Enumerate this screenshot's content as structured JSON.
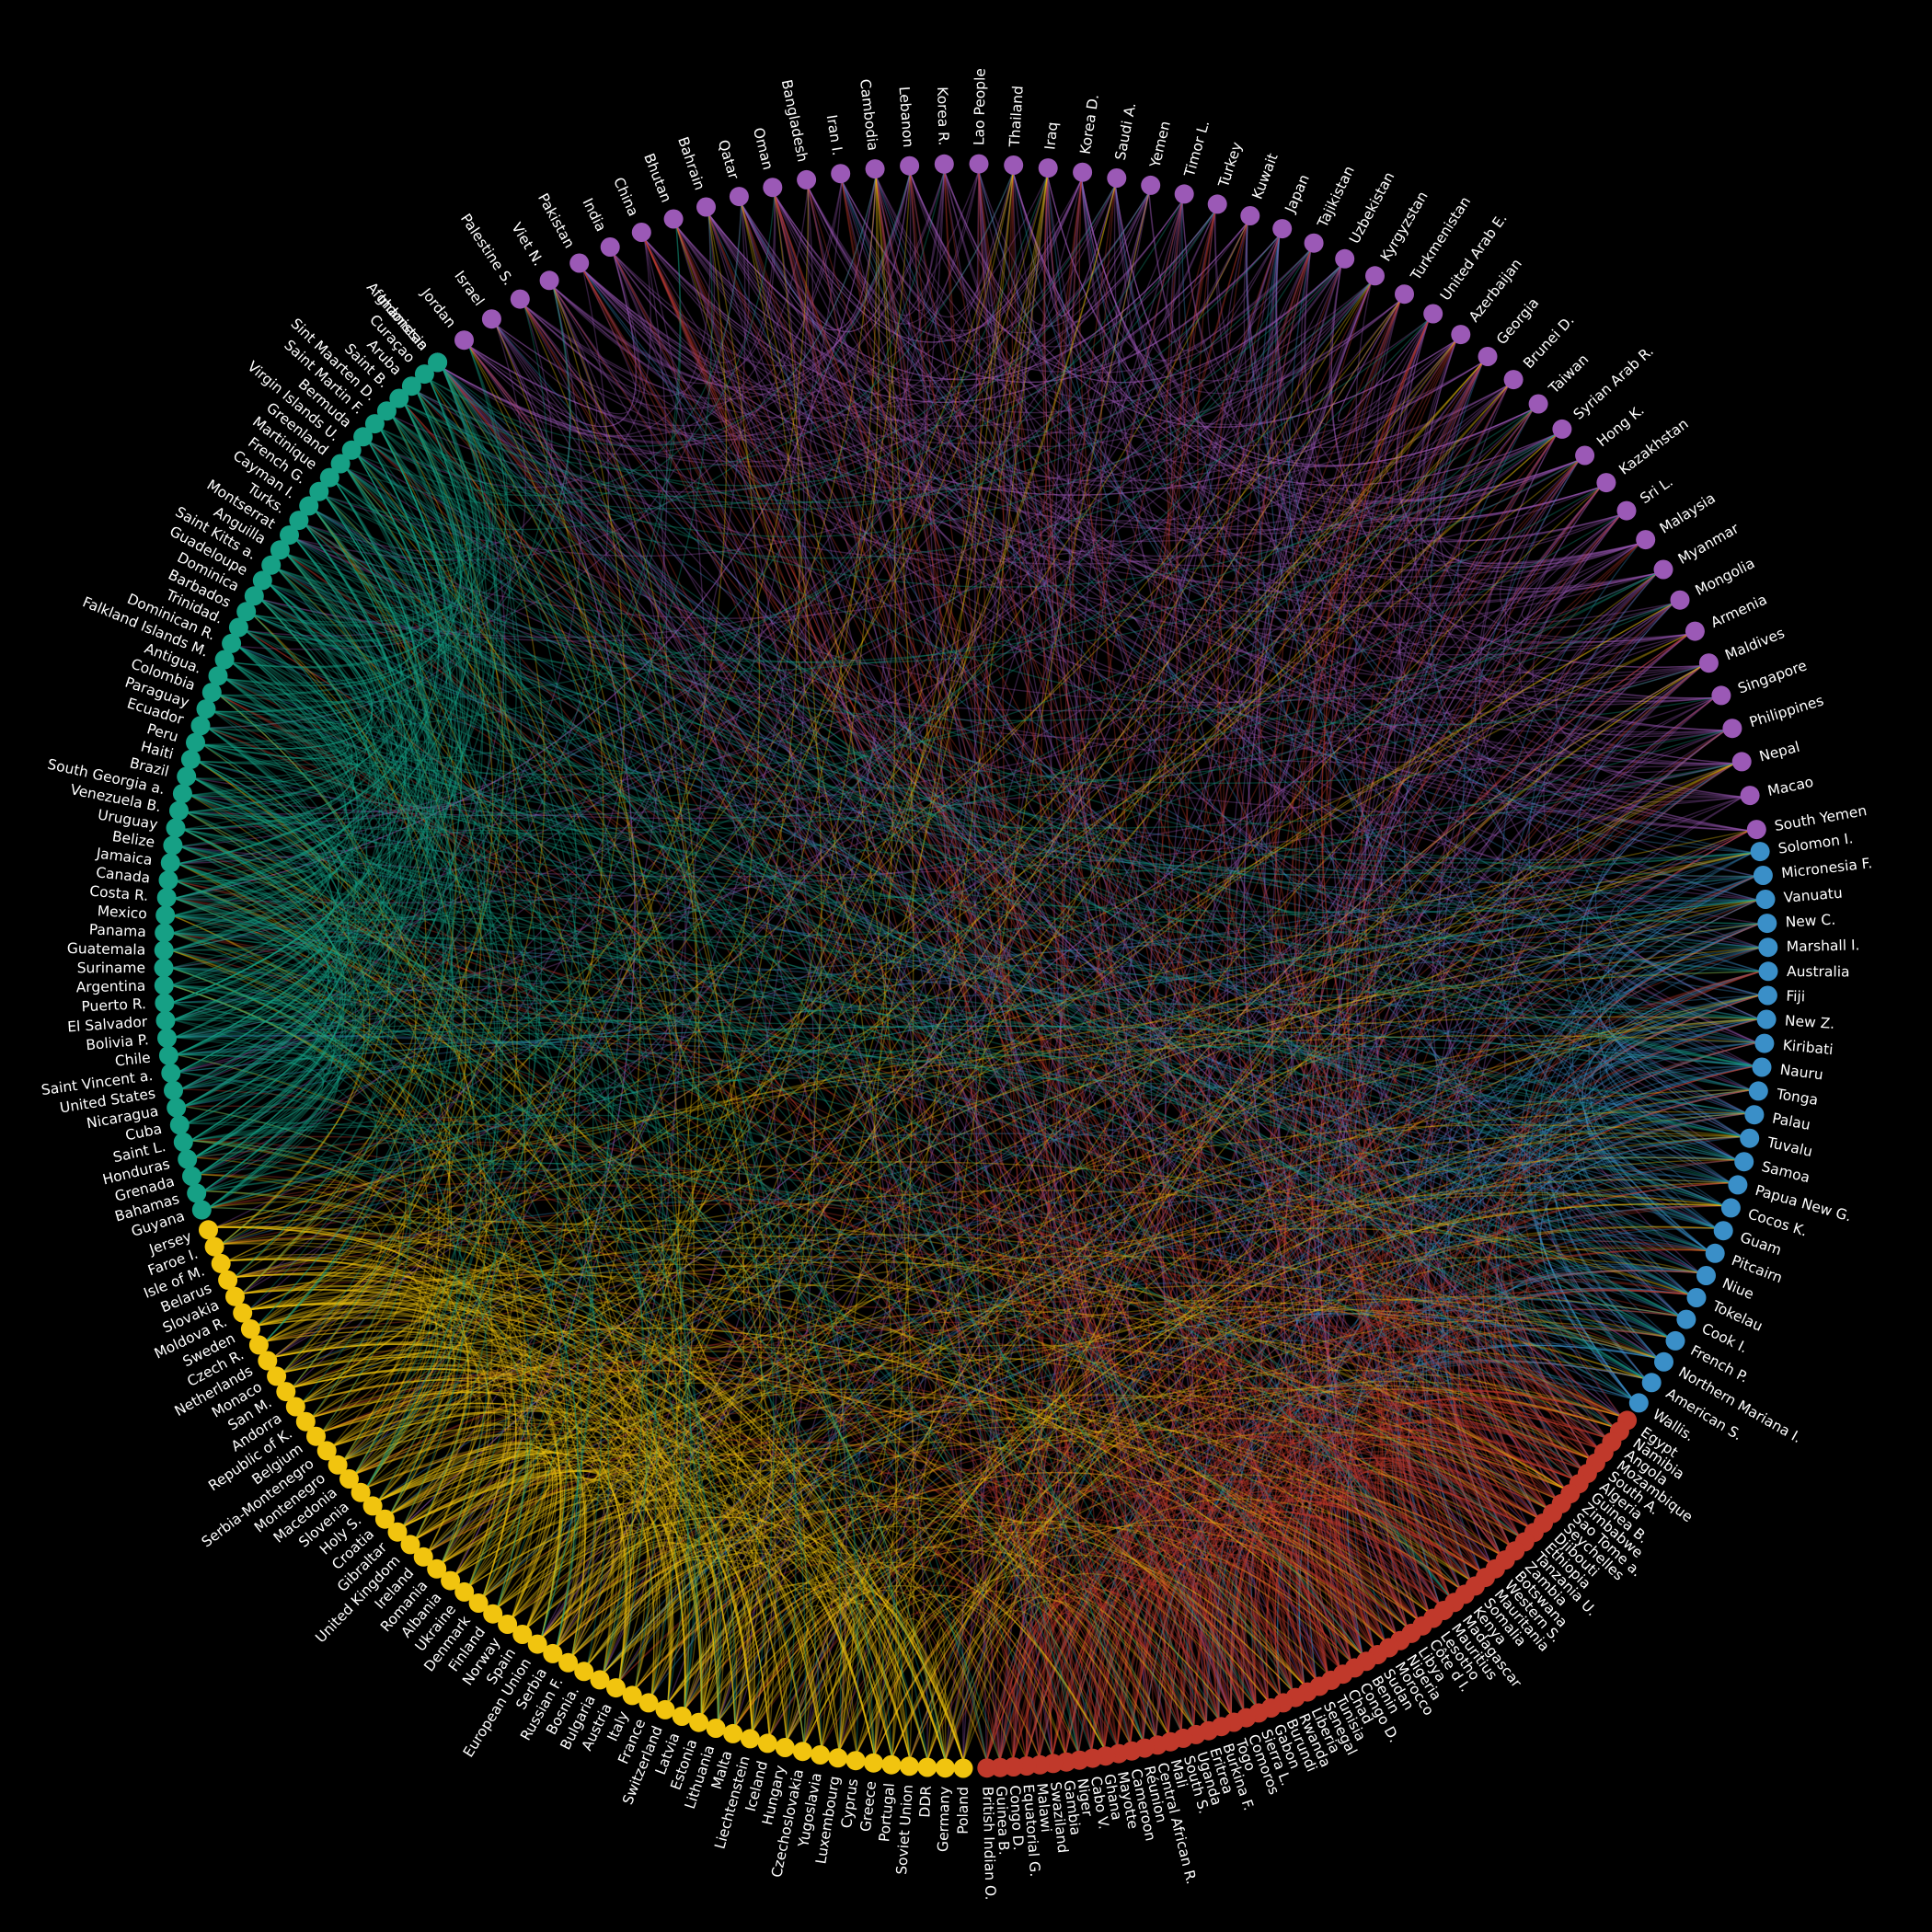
{
  "diagram": {
    "type": "chord",
    "background": "#000000",
    "groups": [
      {
        "name": "Asia",
        "color": "#9b59b6",
        "nodes": [
          "Indonesia",
          "Jordan",
          "Israel",
          "Palestine S.",
          "Viet N.",
          "Pakistan",
          "India",
          "China",
          "Bhutan",
          "Bahrain",
          "Qatar",
          "Oman",
          "Bangladesh",
          "Iran I.",
          "Cambodia",
          "Lebanon",
          "Korea R.",
          "Lao People",
          "Thailand",
          "Iraq",
          "Korea D.",
          "Saudi A.",
          "Yemen",
          "Timor L.",
          "Turkey",
          "Kuwait",
          "Japan",
          "Tajikistan",
          "Uzbekistan",
          "Kyrgyzstan",
          "Turkmenistan",
          "United Arab E.",
          "Azerbaijan",
          "Georgia",
          "Brunei D.",
          "Taiwan",
          "Syrian Arab R.",
          "Hong K.",
          "Kazakhstan",
          "Sri L.",
          "Malaysia",
          "Myanmar",
          "Mongolia",
          "Armenia",
          "Maldives",
          "Singapore",
          "Philippines",
          "Nepal",
          "Macao",
          "South Yemen"
        ]
      },
      {
        "name": "Oceania",
        "color": "#3a8fc8",
        "nodes": [
          "Solomon I.",
          "Micronesia F.",
          "Vanuatu",
          "New C.",
          "Marshall I.",
          "Australia",
          "Fiji",
          "New Z.",
          "Kiribati",
          "Nauru",
          "Tonga",
          "Palau",
          "Tuvalu",
          "Samoa",
          "Papua New G.",
          "Cocos K.",
          "Guam",
          "Pitcairn",
          "Niue",
          "Tokelau",
          "Cook I.",
          "French P.",
          "Northern Mariana I.",
          "American S.",
          "Wallis."
        ]
      },
      {
        "name": "Africa",
        "color": "#c0392b",
        "nodes": [
          "Egypt",
          "Namibia",
          "Angola",
          "Mozambique",
          "South A.",
          "Algeria",
          "Guinea B.",
          "Zimbabwe",
          "Sao Tome a.",
          "Seychelles",
          "Djibouti",
          "Ethiopia",
          "Tanzania U.",
          "Zambia",
          "Botswana",
          "Western S.",
          "Mauritania",
          "Somalia",
          "Kenya",
          "Madagascar",
          "Mauritius",
          "Lesotho",
          "Côte d I.",
          "Libya",
          "Nigeria",
          "Morocco",
          "Sudan",
          "Benin",
          "Congo D.",
          "Chad",
          "Tunisia",
          "Senegal",
          "Liberia",
          "Rwanda",
          "Burundi",
          "Gabon",
          "Sierra L.",
          "Comoros",
          "Togo",
          "Burkina F.",
          "Eritrea",
          "Uganda",
          "South S.",
          "Mali",
          "Central African R.",
          "Réunion",
          "Cameroon",
          "Mayotte",
          "Ghana",
          "Cabo V.",
          "Niger",
          "Gambia",
          "Swaziland",
          "Malawi",
          "Equatorial G.",
          "Congo D.",
          "Guinea B.",
          "British Indian O."
        ]
      },
      {
        "name": "Europe",
        "color": "#f1c40f",
        "nodes": [
          "Poland",
          "Germany",
          "DDR",
          "Soviet Union",
          "Portugal",
          "Greece",
          "Cyprus",
          "Luxembourg",
          "Yugoslavia",
          "Czechoslovakia",
          "Hungary",
          "Iceland",
          "Liechtenstein",
          "Malta",
          "Lithuania",
          "Estonia",
          "Latvia",
          "Switzerland",
          "France",
          "Italy",
          "Austria",
          "Bulgaria",
          "Bosnia.",
          "Russian F.",
          "Serbia",
          "European Union",
          "Spain",
          "Norway",
          "Finland",
          "Denmark",
          "Ukraine",
          "Albania",
          "Romania",
          "Ireland",
          "United Kingdom",
          "Gibraltar",
          "Croatia",
          "Holy S.",
          "Slovenia",
          "Macedonia",
          "Montenegro",
          "Serbia-Montenegro",
          "Belgium",
          "Republic of K.",
          "Andorra",
          "San M.",
          "Monaco",
          "Netherlands",
          "Czech R.",
          "Sweden",
          "Moldova R.",
          "Slovakia",
          "Belarus",
          "Isle of M.",
          "Faroe I.",
          "Jersey"
        ]
      },
      {
        "name": "Americas",
        "color": "#16a085",
        "nodes": [
          "Guyana",
          "Bahamas",
          "Grenada",
          "Honduras",
          "Saint L.",
          "Cuba",
          "Nicaragua",
          "United States",
          "Saint Vincent a.",
          "Chile",
          "Bolivia P.",
          "El Salvador",
          "Puerto R.",
          "Argentina",
          "Suriname",
          "Guatemala",
          "Panama",
          "Mexico",
          "Costa R.",
          "Canada",
          "Jamaica",
          "Belize",
          "Uruguay",
          "Venezuela B.",
          "South Georgia a.",
          "Brazil",
          "Haiti",
          "Peru",
          "Ecuador",
          "Paraguay",
          "Colombia",
          "Antigua.",
          "Falkland Islands M.",
          "Dominican R.",
          "Trinidad.",
          "Barbados",
          "Dominica",
          "Guadeloupe",
          "Saint Kitts a.",
          "Anguilla",
          "Montserrat",
          "Turks.",
          "Cayman I.",
          "French G.",
          "Martinique",
          "Greenland",
          "Virgin Islands U.",
          "Bermuda",
          "Saint Martin F.",
          "Sint Maarten D.",
          "Saint B.",
          "Aruba",
          "Curaçao",
          "Afghanistan"
        ]
      }
    ]
  }
}
